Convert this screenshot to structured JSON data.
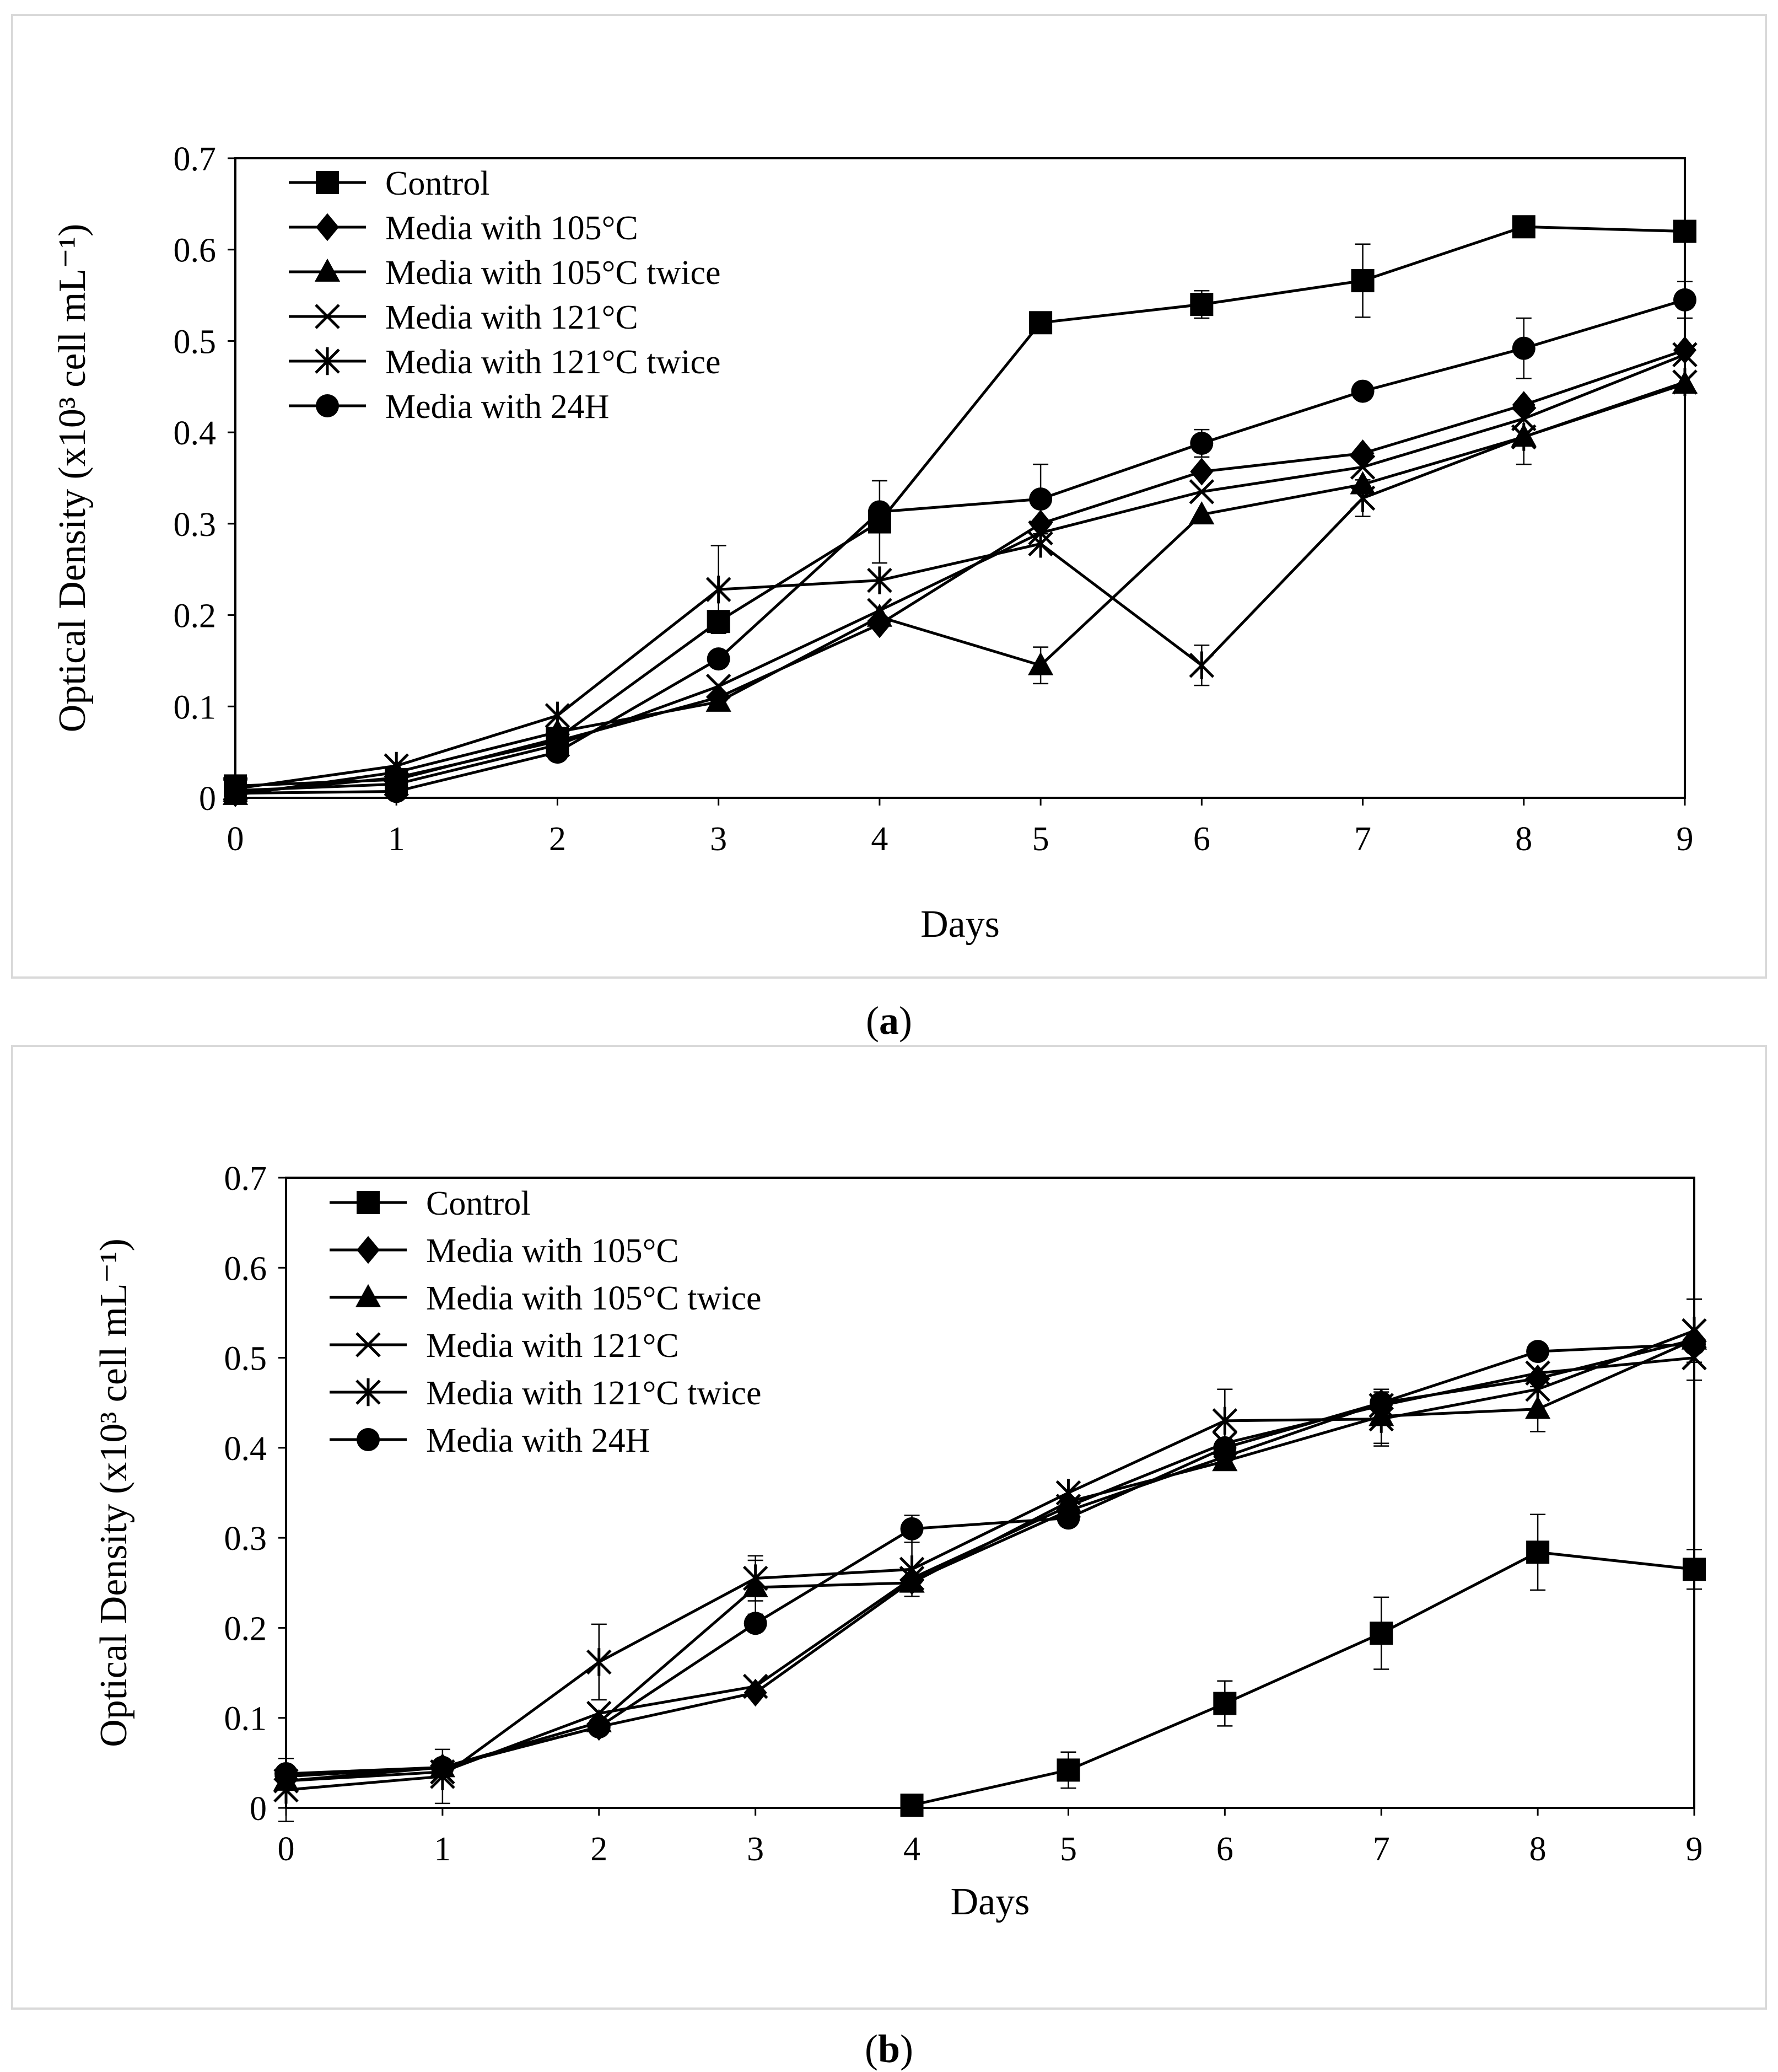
{
  "panels": [
    {
      "label": "a",
      "chart_data": {
        "type": "line",
        "xlabel": "Days",
        "ylabel": "Optical Density (x10³ cell mL⁻¹)",
        "x": [
          0,
          1,
          2,
          3,
          4,
          5,
          6,
          7,
          8,
          9
        ],
        "xticks": [
          "0",
          "1",
          "2",
          "3",
          "4",
          "5",
          "6",
          "7",
          "8",
          "9"
        ],
        "yticks": [
          "0",
          "0.1",
          "0.2",
          "0.3",
          "0.4",
          "0.5",
          "0.6",
          "0.7"
        ],
        "ylim": [
          0,
          0.7
        ],
        "xlim": [
          0,
          9
        ],
        "legend_position": "top-left",
        "series": [
          {
            "name": "Control",
            "marker": "square",
            "values": [
              0.013,
              0.02,
              0.065,
              0.193,
              0.302,
              0.52,
              0.54,
              0.566,
              0.625,
              0.62
            ],
            "err": [
              0,
              0,
              0,
              0,
              0.045,
              0,
              0.015,
              0.04,
              0,
              0
            ]
          },
          {
            "name": "Media with 105°C",
            "marker": "diamond",
            "values": [
              0.005,
              0.022,
              0.062,
              0.11,
              0.19,
              0.3,
              0.357,
              0.377,
              0.43,
              0.49
            ],
            "err": [
              0,
              0,
              0,
              0,
              0,
              0,
              0,
              0,
              0,
              0
            ]
          },
          {
            "name": "Media with 105°C twice",
            "marker": "triangle",
            "values": [
              0.003,
              0.028,
              0.072,
              0.105,
              0.198,
              0.145,
              0.31,
              0.343,
              0.395,
              0.453
            ],
            "err": [
              0,
              0,
              0,
              0,
              0,
              0.02,
              0,
              0,
              0.03,
              0
            ]
          },
          {
            "name": "Media with 121°C",
            "marker": "x",
            "values": [
              0.008,
              0.015,
              0.058,
              0.122,
              0.205,
              0.29,
              0.335,
              0.362,
              0.415,
              0.485
            ],
            "err": [
              0,
              0,
              0,
              0,
              0,
              0,
              0,
              0,
              0,
              0
            ]
          },
          {
            "name": "Media with 121°C twice",
            "marker": "asterisk",
            "values": [
              0.01,
              0.035,
              0.09,
              0.228,
              0.238,
              0.278,
              0.145,
              0.328,
              0.395,
              0.455
            ],
            "err": [
              0,
              0,
              0,
              0.048,
              0,
              0,
              0.022,
              0.02,
              0,
              0
            ]
          },
          {
            "name": "Media with 24H",
            "marker": "circle",
            "values": [
              0.005,
              0.007,
              0.05,
              0.152,
              0.313,
              0.327,
              0.388,
              0.445,
              0.492,
              0.545
            ],
            "err": [
              0,
              0,
              0,
              0,
              0,
              0.038,
              0.015,
              0,
              0.033,
              0.02
            ]
          }
        ]
      }
    },
    {
      "label": "b",
      "chart_data": {
        "type": "line",
        "xlabel": "Days",
        "ylabel": "Optical Density (x10³ cell mL⁻¹)",
        "x": [
          0,
          1,
          2,
          3,
          4,
          5,
          6,
          7,
          8,
          9
        ],
        "xticks": [
          "0",
          "1",
          "2",
          "3",
          "4",
          "5",
          "6",
          "7",
          "8",
          "9"
        ],
        "yticks": [
          "0",
          "0.1",
          "0.2",
          "0.3",
          "0.4",
          "0.5",
          "0.6",
          "0.7"
        ],
        "ylim": [
          0,
          0.7
        ],
        "xlim": [
          0,
          9
        ],
        "legend_position": "top-left",
        "series": [
          {
            "name": "Control",
            "marker": "square",
            "x": [
              4,
              5,
              6,
              7,
              8,
              9
            ],
            "values": [
              0.003,
              0.042,
              0.116,
              0.194,
              0.284,
              0.265
            ],
            "err": [
              0,
              0.02,
              0.025,
              0.04,
              0.042,
              0.022
            ]
          },
          {
            "name": "Media with 105°C",
            "marker": "diamond",
            "values": [
              0.035,
              0.045,
              0.09,
              0.128,
              0.252,
              0.33,
              0.39,
              0.45,
              0.477,
              0.52
            ],
            "err": [
              0,
              0,
              0,
              0,
              0,
              0,
              0,
              0,
              0,
              0
            ]
          },
          {
            "name": "Media with 105°C twice",
            "marker": "triangle",
            "values": [
              0.03,
              0.045,
              0.095,
              0.245,
              0.25,
              0.34,
              0.385,
              0.435,
              0.443,
              0.52
            ],
            "err": [
              0,
              0,
              0,
              0.03,
              0,
              0,
              0,
              0.03,
              0.025,
              0.045
            ]
          },
          {
            "name": "Media with 121°C",
            "marker": "x",
            "values": [
              0.03,
              0.04,
              0.105,
              0.135,
              0.255,
              0.335,
              0.405,
              0.447,
              0.483,
              0.5
            ],
            "err": [
              0,
              0,
              0,
              0,
              0,
              0,
              0,
              0,
              0,
              0
            ]
          },
          {
            "name": "Media with 121°C twice",
            "marker": "asterisk",
            "values": [
              0.02,
              0.035,
              0.162,
              0.255,
              0.265,
              0.35,
              0.43,
              0.432,
              0.465,
              0.53
            ],
            "err": [
              0.035,
              0.03,
              0.042,
              0.025,
              0.03,
              0,
              0.035,
              0.03,
              0,
              0.035
            ]
          },
          {
            "name": "Media with 24H",
            "marker": "circle",
            "values": [
              0.038,
              0.045,
              0.09,
              0.205,
              0.31,
              0.322,
              0.4,
              0.45,
              0.507,
              0.515
            ],
            "err": [
              0,
              0,
              0,
              0,
              0.015,
              0,
              0,
              0,
              0,
              0
            ]
          }
        ]
      }
    }
  ]
}
